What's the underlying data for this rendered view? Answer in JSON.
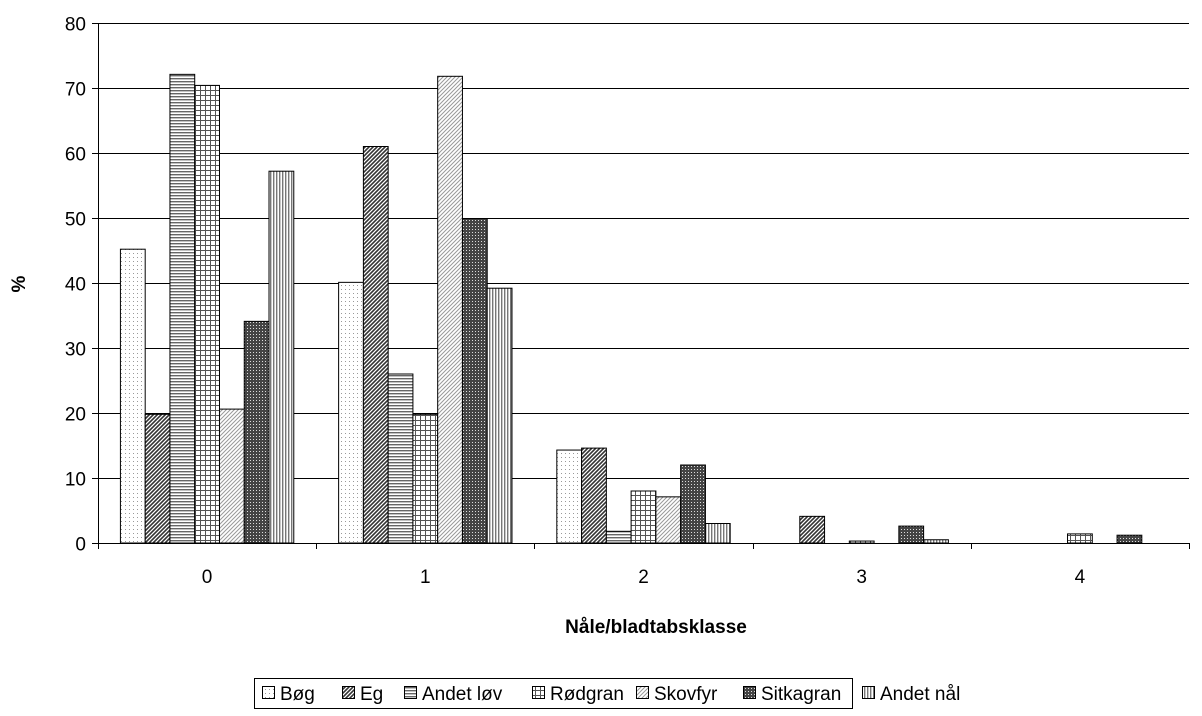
{
  "chart_data": {
    "type": "bar",
    "title": "",
    "xlabel": "Nåle/bladtabsklasse",
    "ylabel": "%",
    "ylim": [
      0,
      80
    ],
    "yticks": [
      0,
      10,
      20,
      30,
      40,
      50,
      60,
      70,
      80
    ],
    "grid": true,
    "legend_position": "bottom",
    "categories": [
      "0",
      "1",
      "2",
      "3",
      "4"
    ],
    "series": [
      {
        "name": "Bøg",
        "fill": "#ffffff",
        "pattern": "dots-fine",
        "values": [
          45.2,
          40.1,
          14.3,
          0,
          0
        ]
      },
      {
        "name": "Eg",
        "fill": "#666666",
        "pattern": "diag-dense",
        "values": [
          19.8,
          61.0,
          14.6,
          4.1,
          0
        ]
      },
      {
        "name": "Andet løv",
        "fill": "#bbbbbb",
        "pattern": "horiz-lines",
        "values": [
          72.1,
          26.0,
          1.8,
          0,
          0
        ]
      },
      {
        "name": "Rødgran",
        "fill": "#ffffff",
        "pattern": "grid",
        "values": [
          70.4,
          19.8,
          8.0,
          0.3,
          1.4
        ]
      },
      {
        "name": "Skovfyr",
        "fill": "#dddddd",
        "pattern": "diag-light",
        "values": [
          20.6,
          71.8,
          7.1,
          0,
          0
        ]
      },
      {
        "name": "Sitkagran",
        "fill": "#555555",
        "pattern": "crosshatch",
        "values": [
          34.1,
          49.9,
          12.0,
          2.6,
          1.2
        ]
      },
      {
        "name": "Andet nål",
        "fill": "#aaaaaa",
        "pattern": "vert-lines",
        "values": [
          57.2,
          39.2,
          3.0,
          0.5,
          0
        ]
      }
    ]
  }
}
